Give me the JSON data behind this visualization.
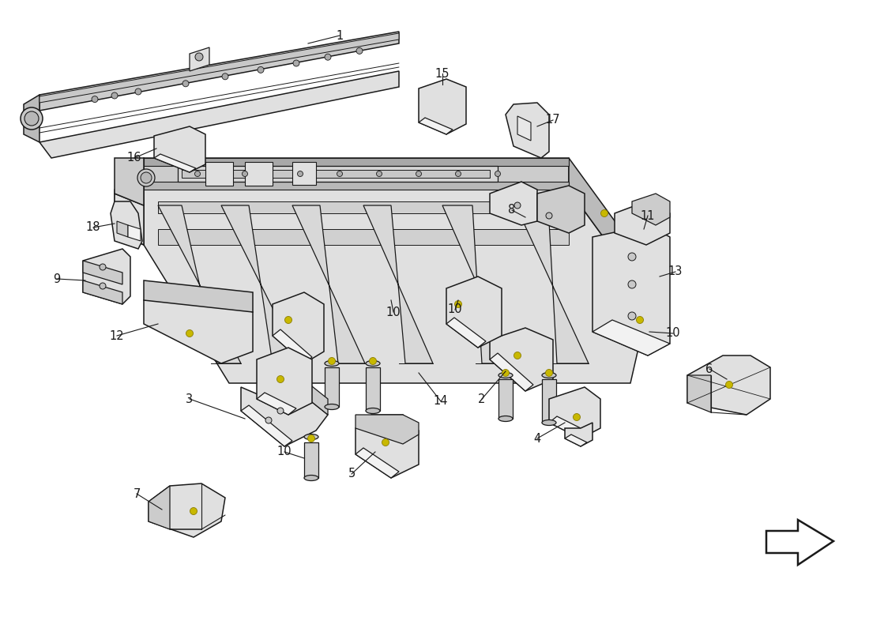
{
  "bg_color": "#ffffff",
  "line_color": "#1a1a1a",
  "line_width": 1.1,
  "label_fontsize": 10.5,
  "face_light": "#f2f2f2",
  "face_mid": "#e0e0e0",
  "face_dark": "#cccccc",
  "face_darker": "#bbbbbb",
  "yellow": "#c8b800",
  "yellow_edge": "#8a7c00"
}
